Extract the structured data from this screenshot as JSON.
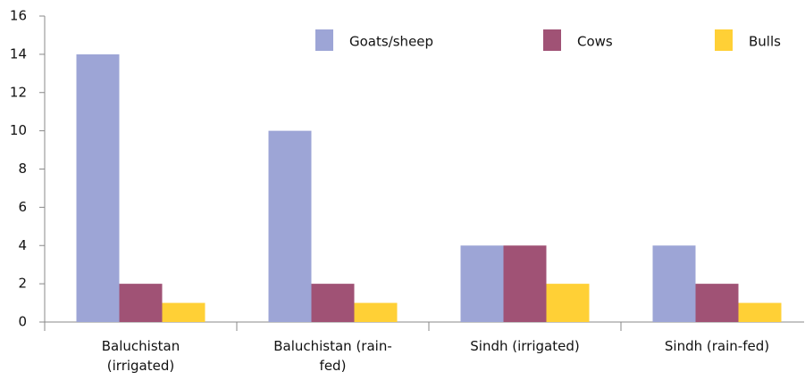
{
  "chart_data": {
    "type": "bar",
    "categories": [
      "Baluchistan (irrigated)",
      "Baluchistan (rain-fed)",
      "Sindh (irrigated)",
      "Sindh (rain-fed)"
    ],
    "series": [
      {
        "name": "Goats/sheep",
        "color": "#9da5d6",
        "values": [
          14,
          10,
          4,
          4
        ]
      },
      {
        "name": "Cows",
        "color": "#a05275",
        "values": [
          2,
          2,
          4,
          2
        ]
      },
      {
        "name": "Bulls",
        "color": "#ffd036",
        "values": [
          1,
          1,
          2,
          1
        ]
      }
    ],
    "ylim": [
      0,
      16
    ],
    "yticks": [
      0,
      2,
      4,
      6,
      8,
      10,
      12,
      14,
      16
    ],
    "grid": false,
    "legend": "top"
  }
}
